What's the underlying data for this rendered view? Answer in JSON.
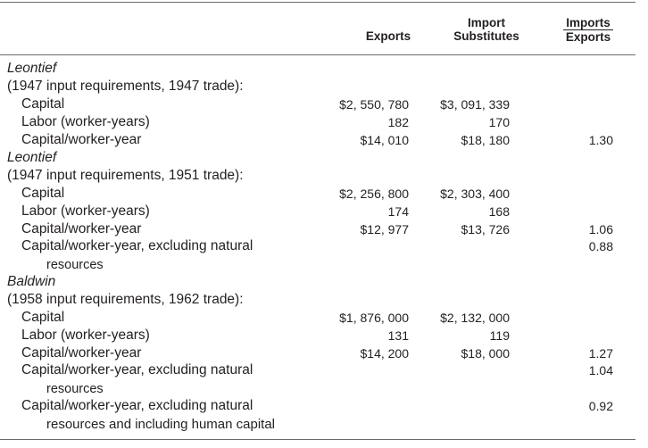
{
  "header": {
    "exports": "Exports",
    "import_substitutes": "Import Substitutes",
    "ratio_numerator": "Imports",
    "ratio_denominator": "Exports"
  },
  "sections": [
    {
      "study": "Leontief",
      "period": "(1947 input requirements, 1947 trade):",
      "rows": [
        {
          "label": "Capital",
          "exports": "$2, 550, 780",
          "imports": "$3, 091, 339",
          "ratio": ""
        },
        {
          "label": "Labor (worker-years)",
          "exports": "182",
          "imports": "170",
          "ratio": ""
        },
        {
          "label": "Capital/worker-year",
          "exports": "$14, 010",
          "imports": "$18, 180",
          "ratio": "1.30"
        }
      ]
    },
    {
      "study": "Leontief",
      "period": "(1947 input requirements, 1951 trade):",
      "rows": [
        {
          "label": "Capital",
          "exports": "$2, 256, 800",
          "imports": "$2, 303, 400",
          "ratio": ""
        },
        {
          "label": "Labor (worker-years)",
          "exports": "174",
          "imports": "168",
          "ratio": ""
        },
        {
          "label": "Capital/worker-year",
          "exports": "$12, 977",
          "imports": "$13, 726",
          "ratio": "1.06"
        },
        {
          "label": "Capital/worker-year, excluding natural",
          "label_cont": "resources",
          "exports": "",
          "imports": "",
          "ratio": "0.88"
        }
      ]
    },
    {
      "study": "Baldwin",
      "period": "(1958 input requirements, 1962 trade):",
      "rows": [
        {
          "label": "Capital",
          "exports": "$1, 876, 000",
          "imports": "$2, 132, 000",
          "ratio": ""
        },
        {
          "label": "Labor (worker-years)",
          "exports": "131",
          "imports": "119",
          "ratio": ""
        },
        {
          "label": "Capital/worker-year",
          "exports": "$14, 200",
          "imports": "$18, 000",
          "ratio": "1.27"
        },
        {
          "label": "Capital/worker-year, excluding natural",
          "label_cont": "resources",
          "exports": "",
          "imports": "",
          "ratio": "1.04"
        },
        {
          "label": "Capital/worker-year, excluding natural",
          "label_cont": "resources and including human capital",
          "exports": "",
          "imports": "",
          "ratio": "0.92"
        }
      ]
    }
  ]
}
